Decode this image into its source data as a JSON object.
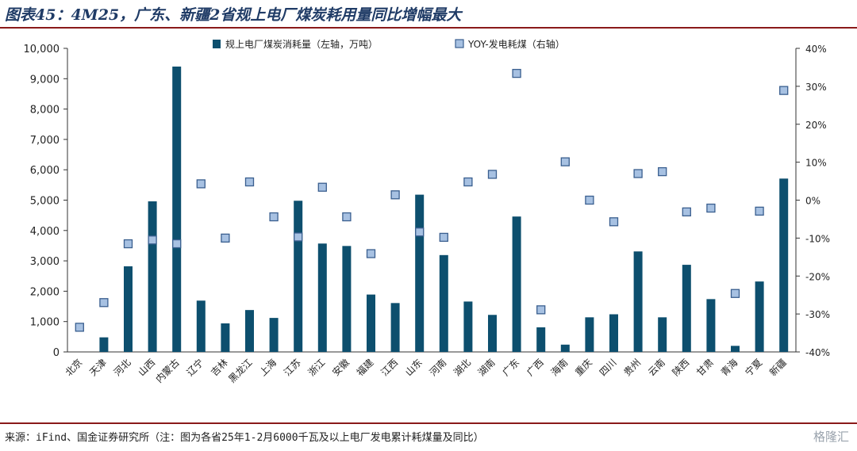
{
  "header": {
    "title": "图表45：4M25，广东、新疆2省规上电厂煤炭耗用量同比增幅最大"
  },
  "footer": {
    "source": "来源：iFind、国金证券研究所（注：图为各省25年1-2月6000千瓦及以上电厂发电累计耗煤量及同比）",
    "watermark": "格隆汇"
  },
  "colors": {
    "bar": "#0d4f6e",
    "marker_fill": "#a7c1e2",
    "marker_stroke": "#3a5f8f",
    "title": "#1f3b66",
    "rule": "#8a1a1a"
  },
  "chart_data": {
    "type": "bar",
    "categories": [
      "北京",
      "天津",
      "河北",
      "山西",
      "内蒙古",
      "辽宁",
      "吉林",
      "黑龙江",
      "上海",
      "江苏",
      "浙江",
      "安徽",
      "福建",
      "江西",
      "山东",
      "河南",
      "湖北",
      "湖南",
      "广东",
      "广西",
      "海南",
      "重庆",
      "四川",
      "贵州",
      "云南",
      "陕西",
      "甘肃",
      "青海",
      "宁夏",
      "新疆"
    ],
    "series": [
      {
        "name": "规上电厂煤炭消耗量（左轴，万吨）",
        "type": "bar",
        "axis": "left",
        "values": [
          0,
          480,
          2820,
          4960,
          9400,
          1690,
          940,
          1380,
          1120,
          4980,
          3570,
          3490,
          1890,
          1610,
          5180,
          3190,
          1660,
          1220,
          4460,
          810,
          240,
          1140,
          1240,
          3310,
          1140,
          2870,
          1740,
          200,
          2320,
          5710
        ]
      },
      {
        "name": "YOY-发电耗煤（右轴）",
        "type": "scatter",
        "axis": "right",
        "values": [
          -33.5,
          -27.0,
          -11.5,
          -10.5,
          -11.5,
          4.3,
          -10.0,
          4.8,
          -4.4,
          -9.7,
          3.4,
          -4.4,
          -14.1,
          1.4,
          -8.4,
          -9.8,
          4.8,
          6.8,
          33.4,
          -28.9,
          10.1,
          0.0,
          -5.7,
          7.0,
          7.5,
          -3.1,
          -2.1,
          -24.6,
          -2.9,
          28.9
        ]
      }
    ],
    "yleft": {
      "ylim": [
        0,
        10000
      ],
      "ticks": [
        "0",
        "1,000",
        "2,000",
        "3,000",
        "4,000",
        "5,000",
        "6,000",
        "7,000",
        "8,000",
        "9,000",
        "10,000"
      ]
    },
    "yright": {
      "ylim": [
        -40,
        40
      ],
      "ticks": [
        "-40%",
        "-30%",
        "-20%",
        "-10%",
        "0%",
        "10%",
        "20%",
        "30%",
        "40%"
      ]
    },
    "legend": {
      "position": "top"
    },
    "grid": false
  }
}
